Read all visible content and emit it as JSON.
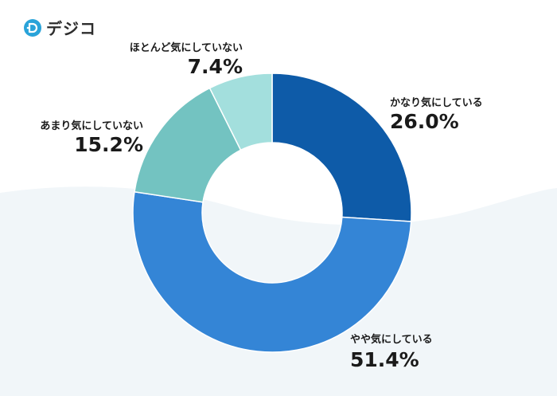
{
  "brand": {
    "name": "デジコ",
    "icon": "d-logo-icon",
    "color": "#29a3d9"
  },
  "colors": {
    "background_wave": "#f1f6f9"
  },
  "chart_data": {
    "type": "pie",
    "style": "donut",
    "unit": "%",
    "start": "12 o'clock",
    "direction": "clockwise",
    "slices": [
      {
        "label": "かなり気にしている",
        "value": 26.0,
        "display": "26.0%",
        "color": "#0e5ba8"
      },
      {
        "label": "やや気にしている",
        "value": 51.4,
        "display": "51.4%",
        "color": "#3485d6"
      },
      {
        "label": "あまり気にしていない",
        "value": 15.2,
        "display": "15.2%",
        "color": "#73c3c1"
      },
      {
        "label": "ほとんど気にしていない",
        "value": 7.4,
        "display": "7.4%",
        "color": "#a3dfdd"
      }
    ]
  }
}
